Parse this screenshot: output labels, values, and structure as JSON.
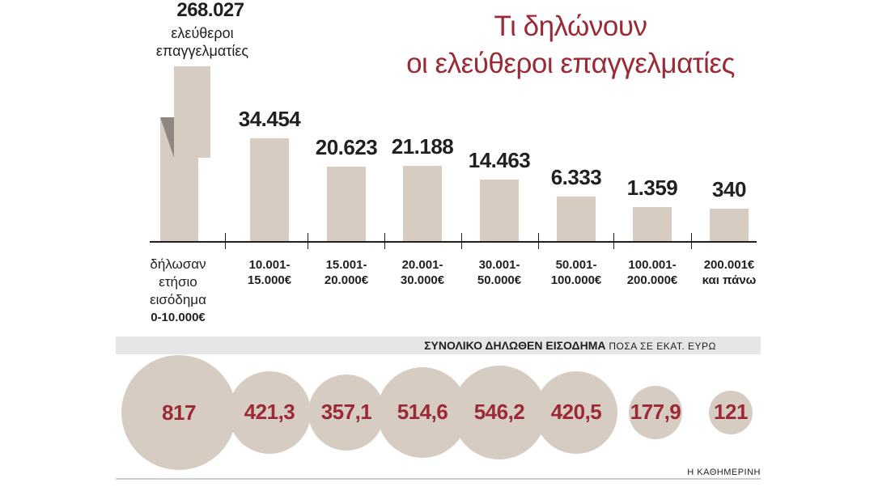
{
  "header": {
    "title_line1": "Τι δηλώνουν",
    "title_line2": "οι ελεύθεροι επαγγελματίες"
  },
  "first_group": {
    "value": "268.027",
    "label_line1": "ελεύθεροι",
    "label_line2": "επαγγελματίες",
    "range_line1": "δήλωσαν",
    "range_line2": "ετήσιο εισόδημα",
    "range_line3": "0-10.000€"
  },
  "bubbles_header": {
    "title": "ΣΥΝΟΛΙΚΟ ΔΗΛΩΘΕΝ ΕΙΣΟΔΗΜΑ",
    "unit": "ΠΟΣΑ ΣΕ ΕΚΑΤ. ΕΥΡΩ"
  },
  "credit": "Η ΚΑΘΗΜΕΡΙΝΗ",
  "colors": {
    "bar": "#d6ccc1",
    "accent": "#9a2a35",
    "band": "#e6e6e6",
    "text": "#231f20"
  },
  "chart_data": [
    {
      "type": "bar",
      "categories": [
        "0-10.000€",
        "10.001-15.000€",
        "15.001-20.000€",
        "20.001-30.000€",
        "30.001-50.000€",
        "50.001-100.000€",
        "100.001-200.000€",
        "200.001€ και πάνω"
      ],
      "category_lines": [
        [
          "0-10.000€"
        ],
        [
          "10.001-",
          "15.000€"
        ],
        [
          "15.001-",
          "20.000€"
        ],
        [
          "20.001-",
          "30.000€"
        ],
        [
          "30.001-",
          "50.000€"
        ],
        [
          "50.001-",
          "100.000€"
        ],
        [
          "100.001-",
          "200.000€"
        ],
        [
          "200.001€",
          "και πάνω"
        ]
      ],
      "values": [
        268027,
        34454,
        20623,
        21188,
        14463,
        6333,
        1359,
        340
      ],
      "value_labels": [
        "268.027",
        "34.454",
        "20.623",
        "21.188",
        "14.463",
        "6.333",
        "1.359",
        "340"
      ],
      "title": "Τι δηλώνουν οι ελεύθεροι επαγγελματίες",
      "axis_break": true,
      "grid": false
    },
    {
      "type": "bubble",
      "title": "ΣΥΝΟΛΙΚΟ ΔΗΛΩΘΕΝ ΕΙΣΟΔΗΜΑ",
      "unit": "ΠΟΣΑ ΣΕ ΕΚΑΤ. ΕΥΡΩ",
      "categories": [
        "0-10.000€",
        "10.001-15.000€",
        "15.001-20.000€",
        "20.001-30.000€",
        "30.001-50.000€",
        "50.001-100.000€",
        "100.001-200.000€",
        "200.001€ και πάνω"
      ],
      "values": [
        817,
        421.3,
        357.1,
        514.6,
        546.2,
        420.5,
        177.9,
        121
      ],
      "value_labels": [
        "817",
        "421,3",
        "357,1",
        "514,6",
        "546,2",
        "420,5",
        "177,9",
        "121"
      ]
    }
  ]
}
